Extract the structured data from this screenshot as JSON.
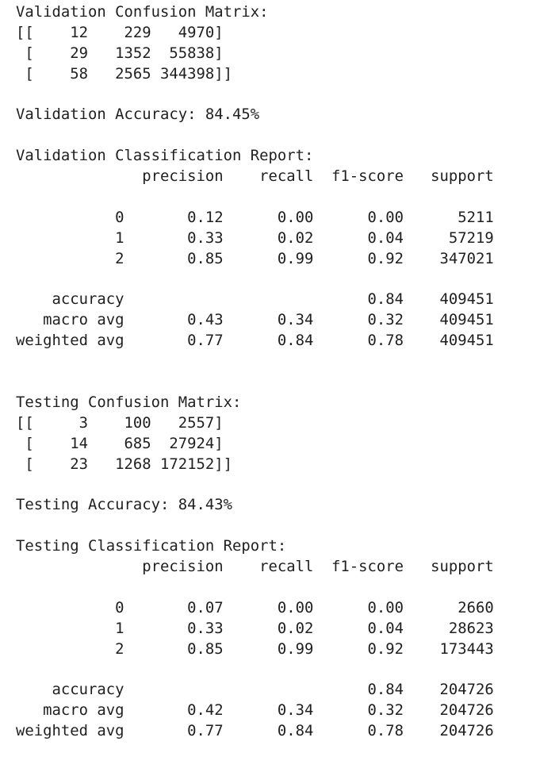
{
  "output_lines": [
    "Validation Confusion Matrix:",
    "[[    12    229   4970]",
    " [    29   1352  55838]",
    " [    58   2565 344398]]",
    "",
    "Validation Accuracy: 84.45%",
    "",
    "Validation Classification Report:",
    "              precision    recall  f1-score   support",
    "",
    "           0       0.12      0.00      0.00      5211",
    "           1       0.33      0.02      0.04     57219",
    "           2       0.85      0.99      0.92    347021",
    "",
    "    accuracy                           0.84    409451",
    "   macro avg       0.43      0.34      0.32    409451",
    "weighted avg       0.77      0.84      0.78    409451",
    "",
    "",
    "Testing Confusion Matrix:",
    "[[     3    100   2557]",
    " [    14    685  27924]",
    " [    23   1268 172152]]",
    "",
    "Testing Accuracy: 84.43%",
    "",
    "Testing Classification Report:",
    "              precision    recall  f1-score   support",
    "",
    "           0       0.07      0.00      0.00      2660",
    "           1       0.33      0.02      0.04     28623",
    "           2       0.85      0.99      0.92    173443",
    "",
    "    accuracy                           0.84    204726",
    "   macro avg       0.42      0.34      0.32    204726",
    "weighted avg       0.77      0.84      0.78    204726"
  ]
}
